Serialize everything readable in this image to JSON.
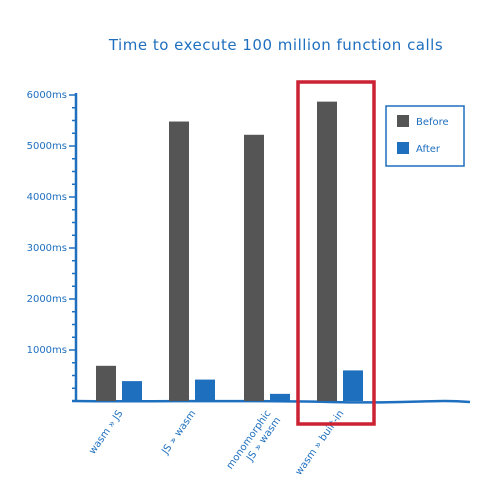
{
  "chart_data": {
    "type": "bar",
    "title": "Time to execute 100 million function calls",
    "categories": [
      [
        "wasm » JS"
      ],
      [
        "JS » wasm"
      ],
      [
        "monomorphic",
        "JS » wasm"
      ],
      [
        "wasm » built-in"
      ]
    ],
    "series": [
      {
        "name": "Before",
        "values": [
          690,
          5480,
          5220,
          5870
        ]
      },
      {
        "name": "After",
        "values": [
          390,
          420,
          140,
          600
        ]
      }
    ],
    "ylim": [
      0,
      6000
    ],
    "yticks": [
      1000,
      2000,
      3000,
      4000,
      5000,
      6000
    ],
    "ytick_labels": [
      "1000ms",
      "2000ms",
      "3000ms",
      "4000ms",
      "5000ms",
      "6000ms"
    ],
    "grid": false,
    "legend_position": "top-right",
    "highlighted_category": "wasm » built-in",
    "colors": {
      "axis": "#1f6fbf",
      "Before": "#555555",
      "After": "#1f6fbf",
      "highlight": "#cc2233"
    }
  }
}
